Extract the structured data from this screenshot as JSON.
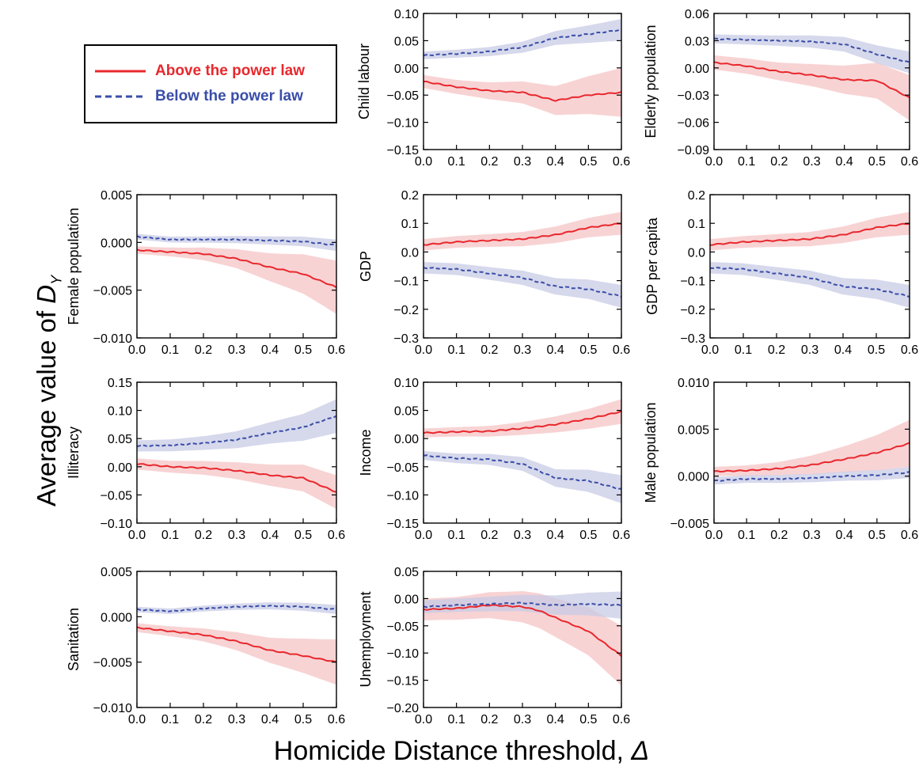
{
  "figure": {
    "ylabel_prefix": "Average value of ",
    "ylabel_symbol": "D",
    "ylabel_sub": "Y",
    "xlabel_prefix": "Homicide Distance threshold, ",
    "xlabel_symbol": "Δ"
  },
  "legend": {
    "above": "Above the power law",
    "below": "Below the power law"
  },
  "colors": {
    "above_line": "#e8282d",
    "above_band": "#f6c4c5",
    "below_line": "#3a4ea8",
    "below_band": "#c8cbe6"
  },
  "chart_data": [
    {
      "type": "line",
      "title": "",
      "xlabel": "",
      "ylabel": "Child labour",
      "xlim": [
        0,
        0.6
      ],
      "ylim": [
        -0.15,
        0.1
      ],
      "xticks": [
        "0.0",
        "0.1",
        "0.2",
        "0.3",
        "0.4",
        "0.5",
        "0.6"
      ],
      "yticks": [
        "0.10",
        "0.05",
        "0.00",
        "−0.05",
        "−0.10",
        "−0.15"
      ],
      "ytick_values": [
        0.1,
        0.05,
        0,
        -0.05,
        -0.1,
        -0.15
      ],
      "x": [
        0,
        0.1,
        0.2,
        0.3,
        0.4,
        0.5,
        0.6
      ],
      "series": [
        {
          "name": "Above the power law",
          "values": [
            -0.025,
            -0.035,
            -0.042,
            -0.045,
            -0.06,
            -0.05,
            -0.045
          ],
          "band": 0.012,
          "band_end": 0.045
        },
        {
          "name": "Below the power law",
          "values": [
            0.023,
            0.026,
            0.03,
            0.038,
            0.055,
            0.062,
            0.07
          ],
          "band": 0.007,
          "band_end": 0.02
        }
      ]
    },
    {
      "type": "line",
      "title": "",
      "xlabel": "",
      "ylabel": "Elderly population",
      "xlim": [
        0,
        0.6
      ],
      "ylim": [
        -0.09,
        0.06
      ],
      "xticks": [
        "0.0",
        "0.1",
        "0.2",
        "0.3",
        "0.4",
        "0.5",
        "0.6"
      ],
      "yticks": [
        "0.06",
        "0.03",
        "0.00",
        "−0.03",
        "−0.06",
        "−0.09"
      ],
      "ytick_values": [
        0.06,
        0.03,
        0,
        -0.03,
        -0.06,
        -0.09
      ],
      "x": [
        0,
        0.1,
        0.2,
        0.3,
        0.4,
        0.5,
        0.6
      ],
      "series": [
        {
          "name": "Above the power law",
          "values": [
            0.006,
            0.002,
            -0.004,
            -0.008,
            -0.013,
            -0.014,
            -0.033
          ],
          "band": 0.008,
          "band_end": 0.025
        },
        {
          "name": "Below the power law",
          "values": [
            0.032,
            0.031,
            0.03,
            0.029,
            0.026,
            0.015,
            0.006
          ],
          "band": 0.005,
          "band_end": 0.012
        }
      ]
    },
    {
      "type": "line",
      "title": "",
      "xlabel": "",
      "ylabel": "Female population",
      "xlim": [
        0,
        0.6
      ],
      "ylim": [
        -0.01,
        0.005
      ],
      "xticks": [
        "0.0",
        "0.1",
        "0.2",
        "0.3",
        "0.4",
        "0.5",
        "0.6"
      ],
      "yticks": [
        "0.005",
        "0.000",
        "−0.005",
        "−0.010"
      ],
      "ytick_values": [
        0.005,
        0,
        -0.005,
        -0.01
      ],
      "x": [
        0,
        0.1,
        0.2,
        0.3,
        0.4,
        0.5,
        0.6
      ],
      "series": [
        {
          "name": "Above the power law",
          "values": [
            -0.0008,
            -0.001,
            -0.0012,
            -0.0017,
            -0.0026,
            -0.0033,
            -0.0047
          ],
          "band": 0.0004,
          "band_end": 0.0028
        },
        {
          "name": "Below the power law",
          "values": [
            0.0006,
            0.0003,
            0.0003,
            0.0003,
            0.0002,
            0.0001,
            -0.0003
          ],
          "band": 0.0003,
          "band_end": 0.0006
        }
      ]
    },
    {
      "type": "line",
      "title": "",
      "xlabel": "",
      "ylabel": "GDP",
      "xlim": [
        0,
        0.6
      ],
      "ylim": [
        -0.3,
        0.2
      ],
      "xticks": [
        "0.0",
        "0.1",
        "0.2",
        "0.3",
        "0.4",
        "0.5",
        "0.6"
      ],
      "yticks": [
        "0.2",
        "0.1",
        "0.0",
        "−0.1",
        "−0.2",
        "−0.3"
      ],
      "ytick_values": [
        0.2,
        0.1,
        0,
        -0.1,
        -0.2,
        -0.3
      ],
      "x": [
        0,
        0.1,
        0.2,
        0.3,
        0.4,
        0.5,
        0.6
      ],
      "series": [
        {
          "name": "Above the power law",
          "values": [
            0.025,
            0.035,
            0.04,
            0.045,
            0.06,
            0.085,
            0.1
          ],
          "band": 0.02,
          "band_end": 0.04
        },
        {
          "name": "Below the power law",
          "values": [
            -0.055,
            -0.06,
            -0.075,
            -0.09,
            -0.12,
            -0.13,
            -0.155
          ],
          "band": 0.02,
          "band_end": 0.04
        }
      ]
    },
    {
      "type": "line",
      "title": "",
      "xlabel": "",
      "ylabel": "GDP per capita",
      "xlim": [
        0,
        0.6
      ],
      "ylim": [
        -0.3,
        0.2
      ],
      "xticks": [
        "0.0",
        "0.1",
        "0.2",
        "0.3",
        "0.4",
        "0.5",
        "0.6"
      ],
      "yticks": [
        "0.2",
        "0.1",
        "0.0",
        "−0.1",
        "−0.2",
        "−0.3"
      ],
      "ytick_values": [
        0.2,
        0.1,
        0,
        -0.1,
        -0.2,
        -0.3
      ],
      "x": [
        0,
        0.1,
        0.2,
        0.3,
        0.4,
        0.5,
        0.6
      ],
      "series": [
        {
          "name": "Above the power law",
          "values": [
            0.025,
            0.035,
            0.04,
            0.045,
            0.06,
            0.085,
            0.1
          ],
          "band": 0.02,
          "band_end": 0.04
        },
        {
          "name": "Below the power law",
          "values": [
            -0.055,
            -0.06,
            -0.075,
            -0.09,
            -0.12,
            -0.13,
            -0.155
          ],
          "band": 0.02,
          "band_end": 0.04
        }
      ]
    },
    {
      "type": "line",
      "title": "",
      "xlabel": "",
      "ylabel": "Illiteracy",
      "xlim": [
        0,
        0.6
      ],
      "ylim": [
        -0.1,
        0.15
      ],
      "xticks": [
        "0.0",
        "0.1",
        "0.2",
        "0.3",
        "0.4",
        "0.5",
        "0.6"
      ],
      "yticks": [
        "0.15",
        "0.10",
        "0.05",
        "0.00",
        "−0.05",
        "−0.10"
      ],
      "ytick_values": [
        0.15,
        0.1,
        0.05,
        0,
        -0.05,
        -0.1
      ],
      "x": [
        0,
        0.1,
        0.2,
        0.3,
        0.4,
        0.5,
        0.6
      ],
      "series": [
        {
          "name": "Above the power law",
          "values": [
            0.005,
            0.0,
            -0.002,
            -0.007,
            -0.015,
            -0.02,
            -0.045
          ],
          "band": 0.01,
          "band_end": 0.03
        },
        {
          "name": "Below the power law",
          "values": [
            0.037,
            0.038,
            0.042,
            0.048,
            0.06,
            0.07,
            0.09
          ],
          "band": 0.01,
          "band_end": 0.03
        }
      ]
    },
    {
      "type": "line",
      "title": "",
      "xlabel": "",
      "ylabel": "Income",
      "xlim": [
        0,
        0.6
      ],
      "ylim": [
        -0.15,
        0.1
      ],
      "xticks": [
        "0.0",
        "0.1",
        "0.2",
        "0.3",
        "0.4",
        "0.5",
        "0.6"
      ],
      "yticks": [
        "0.10",
        "0.05",
        "0.00",
        "−0.05",
        "−0.10",
        "−0.15"
      ],
      "ytick_values": [
        0.1,
        0.05,
        0,
        -0.05,
        -0.1,
        -0.15
      ],
      "x": [
        0,
        0.1,
        0.2,
        0.3,
        0.4,
        0.5,
        0.6
      ],
      "series": [
        {
          "name": "Above the power law",
          "values": [
            0.01,
            0.012,
            0.013,
            0.018,
            0.025,
            0.035,
            0.048
          ],
          "band": 0.008,
          "band_end": 0.022
        },
        {
          "name": "Below the power law",
          "values": [
            -0.03,
            -0.035,
            -0.037,
            -0.045,
            -0.07,
            -0.075,
            -0.09
          ],
          "band": 0.008,
          "band_end": 0.025
        }
      ]
    },
    {
      "type": "line",
      "title": "",
      "xlabel": "",
      "ylabel": "Male population",
      "xlim": [
        0,
        0.6
      ],
      "ylim": [
        -0.005,
        0.01
      ],
      "xticks": [
        "0.0",
        "0.1",
        "0.2",
        "0.3",
        "0.4",
        "0.5",
        "0.6"
      ],
      "yticks": [
        "0.010",
        "0.005",
        "0.000",
        "−0.005"
      ],
      "ytick_values": [
        0.01,
        0.005,
        0,
        -0.005
      ],
      "x": [
        0,
        0.1,
        0.2,
        0.3,
        0.4,
        0.5,
        0.6
      ],
      "series": [
        {
          "name": "Above the power law",
          "values": [
            0.0005,
            0.0006,
            0.0008,
            0.0012,
            0.0018,
            0.0025,
            0.0035
          ],
          "band": 0.0005,
          "band_end": 0.0025
        },
        {
          "name": "Below the power law",
          "values": [
            -0.0005,
            -0.0003,
            -0.0003,
            -0.0002,
            0.0,
            0.0001,
            0.0004
          ],
          "band": 0.0004,
          "band_end": 0.0006
        }
      ]
    },
    {
      "type": "line",
      "title": "",
      "xlabel": "",
      "ylabel": "Sanitation",
      "xlim": [
        0,
        0.6
      ],
      "ylim": [
        -0.01,
        0.005
      ],
      "xticks": [
        "0.0",
        "0.1",
        "0.2",
        "0.3",
        "0.4",
        "0.5",
        "0.6"
      ],
      "yticks": [
        "0.005",
        "0.000",
        "−0.005",
        "−0.010"
      ],
      "ytick_values": [
        0.005,
        0,
        -0.005,
        -0.01
      ],
      "x": [
        0,
        0.1,
        0.2,
        0.3,
        0.4,
        0.5,
        0.6
      ],
      "series": [
        {
          "name": "Above the power law",
          "values": [
            -0.0012,
            -0.0016,
            -0.002,
            -0.0027,
            -0.0037,
            -0.0043,
            -0.005
          ],
          "band": 0.0005,
          "band_end": 0.0025
        },
        {
          "name": "Below the power law",
          "values": [
            0.0008,
            0.0006,
            0.0009,
            0.0011,
            0.0012,
            0.0011,
            0.0008
          ],
          "band": 0.0003,
          "band_end": 0.0005
        }
      ]
    },
    {
      "type": "line",
      "title": "",
      "xlabel": "",
      "ylabel": "Unemployment",
      "xlim": [
        0,
        0.6
      ],
      "ylim": [
        -0.2,
        0.05
      ],
      "xticks": [
        "0.0",
        "0.1",
        "0.2",
        "0.3",
        "0.4",
        "0.5",
        "0.6"
      ],
      "yticks": [
        "0.05",
        "0.00",
        "−0.05",
        "−0.10",
        "−0.15",
        "−0.20"
      ],
      "ytick_values": [
        0.05,
        0,
        -0.05,
        -0.1,
        -0.15,
        -0.2
      ],
      "x": [
        0,
        0.1,
        0.2,
        0.3,
        0.35,
        0.4,
        0.5,
        0.6
      ],
      "series": [
        {
          "name": "Above the power law",
          "values": [
            -0.02,
            -0.018,
            -0.012,
            -0.015,
            -0.022,
            -0.035,
            -0.06,
            -0.105
          ],
          "band": 0.02,
          "band_end": 0.055
        },
        {
          "name": "Below the power law",
          "values": [
            -0.015,
            -0.012,
            -0.01,
            -0.008,
            -0.01,
            -0.012,
            -0.01,
            -0.012
          ],
          "band": 0.012,
          "band_end": 0.025
        }
      ]
    }
  ]
}
